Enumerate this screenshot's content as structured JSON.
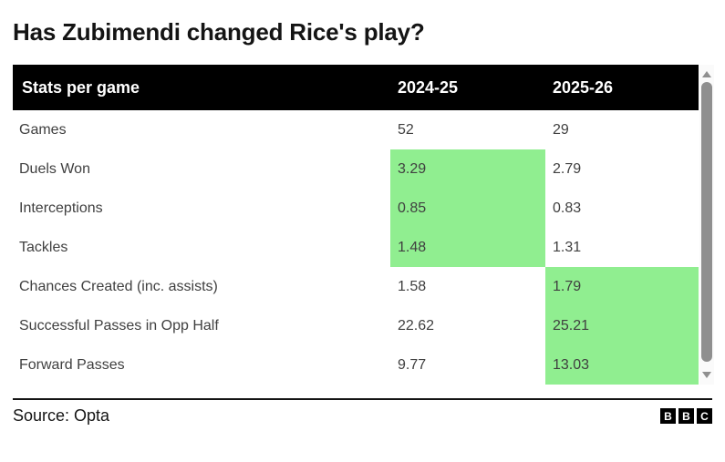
{
  "title": "Has Zubimendi changed Rice's play?",
  "table": {
    "header": {
      "label": "Stats per game",
      "col1": "2024-25",
      "col2": "2025-26"
    },
    "rows": [
      {
        "label": "Games",
        "col1": "52",
        "col2": "29",
        "highlight": null
      },
      {
        "label": "Duels Won",
        "col1": "3.29",
        "col2": "2.79",
        "highlight": "col1"
      },
      {
        "label": "Interceptions",
        "col1": "0.85",
        "col2": "0.83",
        "highlight": "col1"
      },
      {
        "label": "Tackles",
        "col1": "1.48",
        "col2": "1.31",
        "highlight": "col1"
      },
      {
        "label": "Chances Created (inc. assists)",
        "col1": "1.58",
        "col2": "1.79",
        "highlight": "col2"
      },
      {
        "label": "Successful Passes in Opp Half",
        "col1": "22.62",
        "col2": "25.21",
        "highlight": "col2"
      },
      {
        "label": "Forward Passes",
        "col1": "9.77",
        "col2": "13.03",
        "highlight": "col2"
      }
    ]
  },
  "footer": {
    "source": "Source: Opta",
    "logo_letters": [
      "B",
      "B",
      "C"
    ]
  },
  "colors": {
    "title_text": "#141414",
    "header_bg": "#000000",
    "header_text": "#ffffff",
    "body_text": "#404040",
    "highlight_green": "#90ee90",
    "scrollbar_thumb": "#8f8f8f",
    "scrollbar_track": "#fafafa"
  },
  "chart_data": {
    "type": "table",
    "title": "Has Zubimendi changed Rice's play?",
    "columns": [
      "Stats per game",
      "2024-25",
      "2025-26"
    ],
    "rows": [
      {
        "stat": "Games",
        "season_2024_25": 52,
        "season_2025_26": 29,
        "highlighted": null
      },
      {
        "stat": "Duels Won",
        "season_2024_25": 3.29,
        "season_2025_26": 2.79,
        "highlighted": "2024-25"
      },
      {
        "stat": "Interceptions",
        "season_2024_25": 0.85,
        "season_2025_26": 0.83,
        "highlighted": "2024-25"
      },
      {
        "stat": "Tackles",
        "season_2024_25": 1.48,
        "season_2025_26": 1.31,
        "highlighted": "2024-25"
      },
      {
        "stat": "Chances Created (inc. assists)",
        "season_2024_25": 1.58,
        "season_2025_26": 1.79,
        "highlighted": "2025-26"
      },
      {
        "stat": "Successful Passes in Opp Half",
        "season_2024_25": 22.62,
        "season_2025_26": 25.21,
        "highlighted": "2025-26"
      },
      {
        "stat": "Forward Passes",
        "season_2024_25": 9.77,
        "season_2025_26": 13.03,
        "highlighted": "2025-26"
      }
    ],
    "highlight_meaning": "green cell marks the better value of the two seasons in that row",
    "source": "Source: Opta"
  }
}
